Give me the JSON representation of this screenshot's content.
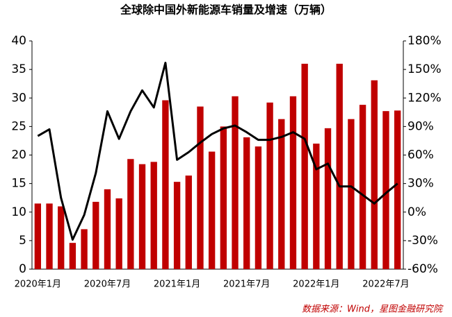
{
  "chart_data": {
    "type": "bar",
    "title": "全球除中国外新能源车销量及增速（万辆）",
    "source": "数据来源：Wind，星图金融研究院",
    "categories": [
      "2020年1月",
      null,
      null,
      null,
      null,
      null,
      "2020年7月",
      null,
      null,
      null,
      null,
      null,
      "2021年1月",
      null,
      null,
      null,
      null,
      null,
      "2021年7月",
      null,
      null,
      null,
      null,
      null,
      "2022年1月",
      null,
      null,
      null,
      null,
      null,
      "2022年7月",
      null
    ],
    "series": [
      {
        "type": "bar",
        "color": "#c00000",
        "values": [
          11.5,
          11.5,
          11,
          4.6,
          7,
          11.8,
          14,
          12.4,
          19.3,
          18.4,
          18.8,
          29.6,
          15.3,
          16.4,
          28.5,
          20.6,
          25,
          30.3,
          23.1,
          21.5,
          29.2,
          26.3,
          30.3,
          36,
          22,
          24.7,
          36,
          26.3,
          28.8,
          33.1,
          27.7,
          27.8
        ]
      },
      {
        "type": "line",
        "color": "#000000",
        "axis": "y2",
        "values": [
          80,
          87,
          15,
          -29,
          -3,
          41,
          106,
          77,
          106,
          128,
          110,
          157,
          55,
          63,
          73,
          82,
          88,
          91,
          84,
          76,
          76,
          79,
          84,
          77,
          45,
          51,
          27,
          27,
          18,
          9,
          20,
          30
        ]
      }
    ],
    "ylim": [
      0,
      40
    ],
    "yticks": [
      0,
      5,
      10,
      15,
      20,
      25,
      30,
      35,
      40
    ],
    "y2lim": [
      -60,
      180
    ],
    "y2ticks": [
      {
        "value": -60,
        "label": "-60%"
      },
      {
        "value": -30,
        "label": "-30%"
      },
      {
        "value": 0,
        "label": "0%"
      },
      {
        "value": 30,
        "label": "30%"
      },
      {
        "value": 60,
        "label": "60%"
      },
      {
        "value": 90,
        "label": "90%"
      },
      {
        "value": 120,
        "label": "120%"
      },
      {
        "value": 150,
        "label": "150%"
      },
      {
        "value": 180,
        "label": "180%"
      }
    ],
    "grid": false
  }
}
